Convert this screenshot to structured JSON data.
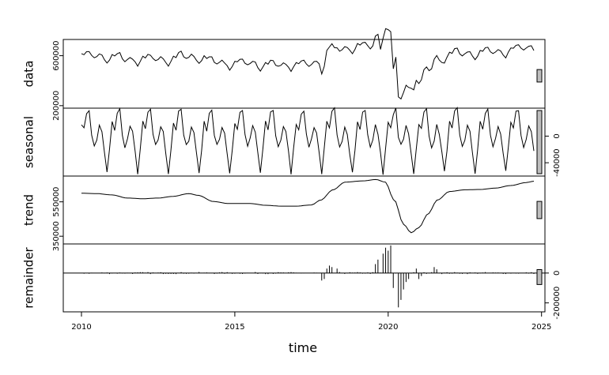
{
  "chart_data": {
    "type": "line",
    "title": "",
    "xlabel": "time",
    "x_ticks": [
      "2010",
      "2015",
      "2020",
      "2025"
    ],
    "x_range": [
      2010.0,
      2024.75
    ],
    "frequency": "monthly",
    "panels": [
      {
        "name": "data",
        "ylim": [
          180000,
          730000
        ],
        "tick_labels": [
          "200000",
          "600000"
        ],
        "tick_values": [
          200000,
          600000
        ],
        "tick_side": "left",
        "values": []
      },
      {
        "name": "seasonal",
        "ylim": [
          -60000,
          42000
        ],
        "tick_labels": [
          "-40000",
          "0"
        ],
        "tick_values": [
          -40000,
          0
        ],
        "tick_side": "right",
        "values": []
      },
      {
        "name": "trend",
        "ylim": [
          305000,
          700000
        ],
        "tick_labels": [
          "350000",
          "550000"
        ],
        "tick_values": [
          350000,
          550000
        ],
        "tick_side": "left",
        "values": []
      },
      {
        "name": "remainder",
        "ylim": [
          -260000,
          195000
        ],
        "tick_labels": [
          "-200000",
          "0"
        ],
        "tick_values": [
          -200000,
          0
        ],
        "tick_side": "right",
        "values": []
      }
    ],
    "seasonal_pattern": [
      20000,
      10000,
      35000,
      40000,
      0,
      -15000,
      -5000,
      15000,
      5000,
      -25000,
      -55000,
      -20000
    ],
    "trend_knots": [
      [
        2010.0,
        600000
      ],
      [
        2010.5,
        598000
      ],
      [
        2011.0,
        590000
      ],
      [
        2011.5,
        572000
      ],
      [
        2012.0,
        568000
      ],
      [
        2012.5,
        572000
      ],
      [
        2013.0,
        582000
      ],
      [
        2013.5,
        598000
      ],
      [
        2013.8,
        588000
      ],
      [
        2014.3,
        552000
      ],
      [
        2014.8,
        540000
      ],
      [
        2015.5,
        540000
      ],
      [
        2016.0,
        530000
      ],
      [
        2016.5,
        525000
      ],
      [
        2017.0,
        525000
      ],
      [
        2017.5,
        532000
      ],
      [
        2017.8,
        560000
      ],
      [
        2018.2,
        620000
      ],
      [
        2018.6,
        665000
      ],
      [
        2019.2,
        672000
      ],
      [
        2019.6,
        680000
      ],
      [
        2019.9,
        665000
      ],
      [
        2020.2,
        560000
      ],
      [
        2020.5,
        420000
      ],
      [
        2020.75,
        370000
      ],
      [
        2021.0,
        400000
      ],
      [
        2021.3,
        480000
      ],
      [
        2021.6,
        560000
      ],
      [
        2022.0,
        610000
      ],
      [
        2022.5,
        620000
      ],
      [
        2023.0,
        622000
      ],
      [
        2023.5,
        630000
      ],
      [
        2024.0,
        645000
      ],
      [
        2024.5,
        662000
      ],
      [
        2024.75,
        670000
      ]
    ],
    "remainder_spikes": [
      [
        2017.8,
        -50000
      ],
      [
        2017.9,
        -40000
      ],
      [
        2018.0,
        30000
      ],
      [
        2018.1,
        50000
      ],
      [
        2018.2,
        40000
      ],
      [
        2018.3,
        30000
      ],
      [
        2019.6,
        60000
      ],
      [
        2019.7,
        90000
      ],
      [
        2019.8,
        130000
      ],
      [
        2019.9,
        170000
      ],
      [
        2020.0,
        150000
      ],
      [
        2020.1,
        185000
      ],
      [
        2020.2,
        -100000
      ],
      [
        2020.3,
        -230000
      ],
      [
        2020.4,
        -180000
      ],
      [
        2020.5,
        -110000
      ],
      [
        2020.6,
        -60000
      ],
      [
        2020.7,
        -40000
      ],
      [
        2020.9,
        30000
      ],
      [
        2021.0,
        -40000
      ],
      [
        2021.1,
        -20000
      ],
      [
        2021.5,
        40000
      ],
      [
        2021.6,
        25000
      ]
    ],
    "range_bar_value": 100000
  }
}
